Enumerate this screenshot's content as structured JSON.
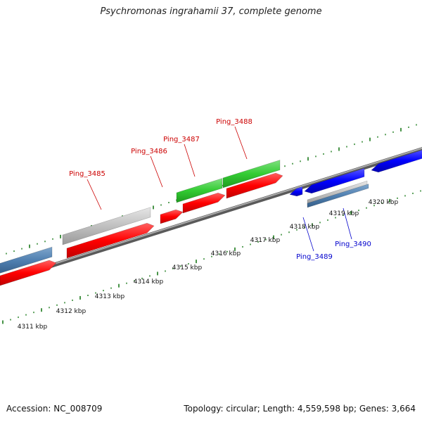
{
  "title": "Psychromonas ingrahamii 37, complete genome",
  "footer": {
    "accession": "Accession: NC_008709",
    "summary": "Topology: circular; Length: 4,559,598 bp; Genes: 3,664"
  },
  "colors": {
    "forward_cds": "#ff0000",
    "other_red": "#ff0000",
    "rna_green": "#33cc33",
    "pseudo_gray": "#c0c0c0",
    "reverse_blue": "#0000ff",
    "steel_blue": "#4f7fb0",
    "backbone": "#777777",
    "tick": "#1a7a1a",
    "label_red": "#cc0000",
    "label_blue": "#0000cc"
  },
  "scale_labels": [
    "4311 kbp",
    "4312 kbp",
    "4313 kbp",
    "4314 kbp",
    "4315 kbp",
    "4316 kbp",
    "4317 kbp",
    "4318 kbp",
    "4319 kbp",
    "4320 kbp"
  ],
  "gene_labels": [
    {
      "name": "Ping_3485",
      "color": "label_red"
    },
    {
      "name": "Ping_3486",
      "color": "label_red"
    },
    {
      "name": "Ping_3487",
      "color": "label_red"
    },
    {
      "name": "Ping_3488",
      "color": "label_red"
    },
    {
      "name": "Ping_3489",
      "color": "label_blue"
    },
    {
      "name": "Ping_3490",
      "color": "label_blue"
    }
  ]
}
